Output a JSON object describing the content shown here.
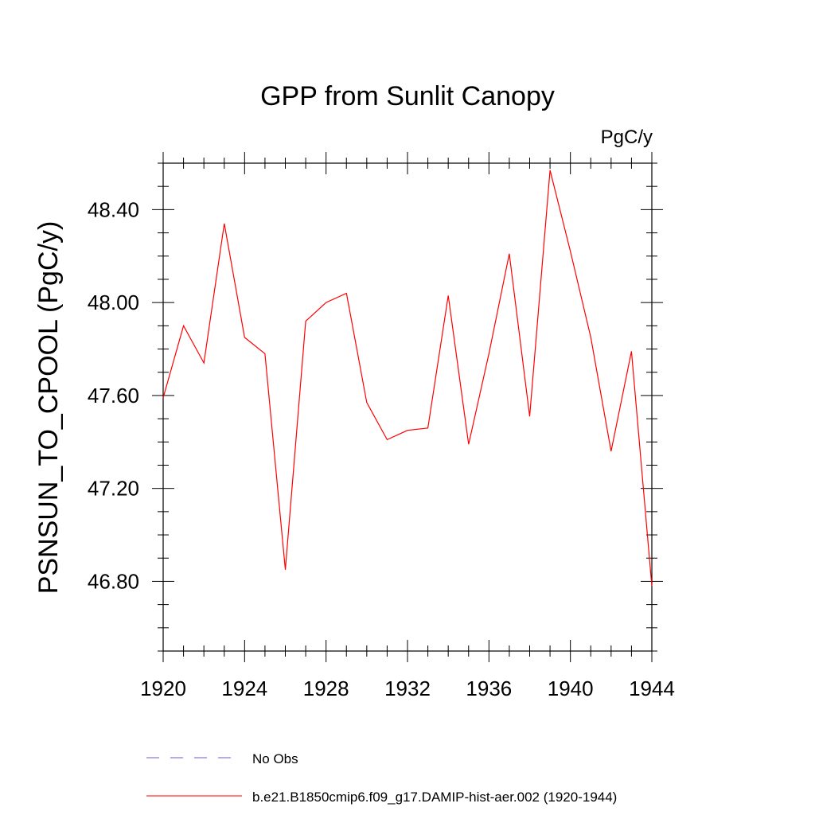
{
  "chart_data": {
    "type": "line",
    "title": "GPP from Sunlit Canopy",
    "units_label": "PgC/y",
    "ylabel": "PSNSUN_TO_CPOOL  (PgC/y)",
    "xlabel": "",
    "xlim": [
      1920,
      1944
    ],
    "ylim": [
      46.5,
      48.6
    ],
    "x_ticks": [
      1920,
      1924,
      1928,
      1932,
      1936,
      1940,
      1944
    ],
    "x_tick_labels": [
      "1920",
      "1924",
      "1928",
      "1932",
      "1936",
      "1940",
      "1944"
    ],
    "y_ticks": [
      46.8,
      47.2,
      47.6,
      48.0,
      48.4
    ],
    "y_tick_labels": [
      "46.80",
      "47.20",
      "47.60",
      "48.00",
      "48.40"
    ],
    "grid": false,
    "legend_placement": "bottom",
    "series": [
      {
        "name": "b.e21.B1850cmip6.f09_g17.DAMIP-hist-aer.002 (1920-1944)",
        "color": "#ff0000",
        "style": "solid",
        "x": [
          1920,
          1921,
          1922,
          1923,
          1924,
          1925,
          1926,
          1927,
          1928,
          1929,
          1930,
          1931,
          1932,
          1933,
          1934,
          1935,
          1936,
          1937,
          1938,
          1939,
          1940,
          1941,
          1942,
          1943,
          1944
        ],
        "y": [
          47.59,
          47.9,
          47.74,
          48.34,
          47.85,
          47.78,
          46.85,
          47.92,
          48.0,
          48.04,
          47.57,
          47.41,
          47.45,
          47.46,
          48.03,
          47.39,
          47.78,
          48.21,
          47.51,
          48.57,
          48.22,
          47.85,
          47.36,
          47.79,
          46.78
        ]
      }
    ],
    "legend": [
      {
        "label": "No Obs",
        "color": "#6a5acd",
        "style": "dashed"
      },
      {
        "label": "b.e21.B1850cmip6.f09_g17.DAMIP-hist-aer.002 (1920-1944)",
        "color": "#ff0000",
        "style": "solid"
      }
    ]
  }
}
